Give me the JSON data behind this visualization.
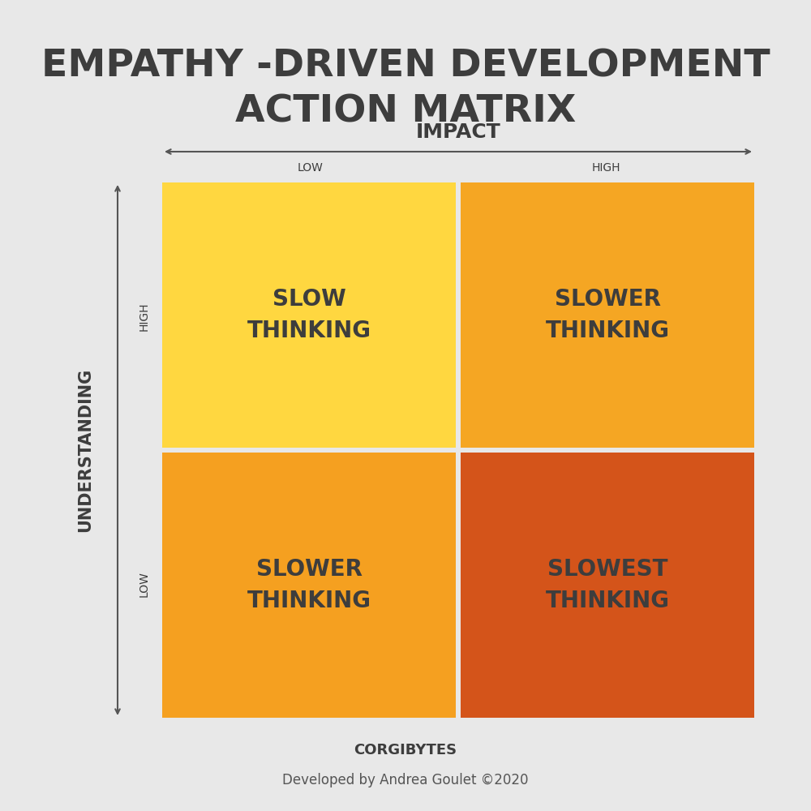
{
  "title_line1": "EMPATHY -DRIVEN DEVELOPMENT",
  "title_line2": "ACTION MATRIX",
  "title_color": "#3d3d3d",
  "title_fontsize": 34,
  "background_color": "#e8e8e8",
  "impact_label": "IMPACT",
  "understanding_label": "UNDERSTANDING",
  "impact_low": "LOW",
  "impact_high": "HIGH",
  "understanding_high": "HIGH",
  "understanding_low": "LOW",
  "axis_label_fontsize": 15,
  "axis_tick_fontsize": 10,
  "cells": [
    {
      "row": 0,
      "col": 0,
      "text": "SLOW\nTHINKING",
      "color": "#FFD740"
    },
    {
      "row": 0,
      "col": 1,
      "text": "SLOWER\nTHINKING",
      "color": "#F5A623"
    },
    {
      "row": 1,
      "col": 0,
      "text": "SLOWER\nTHINKING",
      "color": "#F5A020"
    },
    {
      "row": 1,
      "col": 1,
      "text": "SLOWEST\nTHINKING",
      "color": "#D4541A"
    }
  ],
  "cell_text_color": "#3d3d3d",
  "cell_text_fontsize": 20,
  "footer_text": "Developed by Andrea Goulet ©2020",
  "footer_fontsize": 12,
  "footer_color": "#555555",
  "corgibytes_text": "CORGIBYTES",
  "corgibytes_fontsize": 13
}
